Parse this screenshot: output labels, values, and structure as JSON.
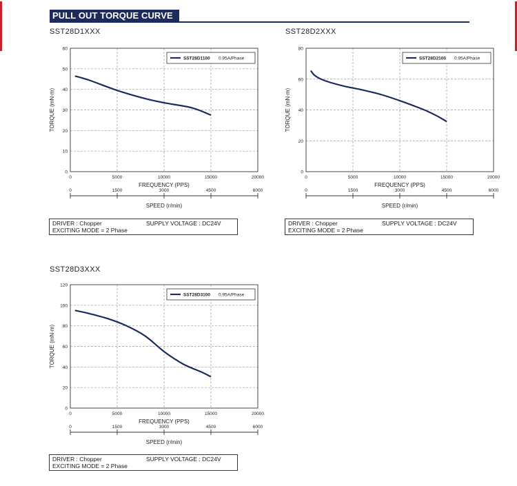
{
  "header": {
    "title": "PULL OUT TORQUE CURVE"
  },
  "colors": {
    "accent_red": "#c8202a",
    "header_bg": "#1c2b5e",
    "curve": "#1c2b5e"
  },
  "chart_data": [
    {
      "type": "line",
      "title": "SST28D1XXX",
      "xlabel": "FREQUENCY (PPS)",
      "ylabel": "TORQUE (mN·m)",
      "x2label": "SPEED (r/min)",
      "xlim": [
        0,
        20000
      ],
      "ylim": [
        0,
        60
      ],
      "xticks": [
        "0",
        "5000",
        "10000",
        "15000",
        "20000"
      ],
      "yticks": [
        "0",
        "10",
        "20",
        "30",
        "40",
        "50",
        "60"
      ],
      "x2ticks": [
        "0",
        "1500",
        "3000",
        "4500",
        "6000"
      ],
      "legend": {
        "model": "SST28D1100",
        "current": "0.95A/Phase"
      },
      "series": [
        {
          "name": "SST28D1100 0.95A/Phase",
          "x": [
            500,
            2000,
            5000,
            8000,
            10000,
            13000,
            15000
          ],
          "y": [
            46.5,
            44.5,
            39.5,
            35.5,
            33.5,
            31,
            27.5
          ]
        }
      ],
      "info": {
        "driver": "DRIVER : Chopper",
        "supply": "SUPPLY VOLTAGE : DC24V",
        "mode": "EXCITING MODE = 2 Phase"
      }
    },
    {
      "type": "line",
      "title": "SST28D2XXX",
      "xlabel": "FREQUENCY (PPS)",
      "ylabel": "TORQUE (mN·m)",
      "x2label": "SPEED (r/min)",
      "xlim": [
        0,
        20000
      ],
      "ylim": [
        0,
        80
      ],
      "xticks": [
        "0",
        "5000",
        "10000",
        "15000",
        "20000"
      ],
      "yticks": [
        "0",
        "20",
        "40",
        "60",
        "80"
      ],
      "x2ticks": [
        "0",
        "1500",
        "3000",
        "4500",
        "6000"
      ],
      "legend": {
        "model": "SST28D2100",
        "current": "0.95A/Phase"
      },
      "series": [
        {
          "name": "SST28D2100 0.95A/Phase",
          "x": [
            500,
            1000,
            2000,
            4000,
            6000,
            8000,
            10000,
            12000,
            13000,
            14000,
            15000
          ],
          "y": [
            65.5,
            62,
            59,
            55.5,
            53,
            50,
            46,
            41.5,
            39,
            36,
            32.5
          ]
        }
      ],
      "info": {
        "driver": "DRIVER : Chopper",
        "supply": "SUPPLY VOLTAGE : DC24V",
        "mode": "EXCITING MODE = 2 Phase"
      }
    },
    {
      "type": "line",
      "title": "SST28D3XXX",
      "xlabel": "FREQUENCY (PPS)",
      "ylabel": "TORQUE (mN·m)",
      "x2label": "SPEED (r/min)",
      "xlim": [
        0,
        20000
      ],
      "ylim": [
        0,
        120
      ],
      "xticks": [
        "0",
        "5000",
        "10000",
        "15000",
        "20000"
      ],
      "yticks": [
        "0",
        "20",
        "40",
        "60",
        "80",
        "100",
        "120"
      ],
      "x2ticks": [
        "0",
        "1500",
        "3000",
        "4500",
        "6000"
      ],
      "legend": {
        "model": "SST28D3100",
        "current": "0.95A/Phase"
      },
      "series": [
        {
          "name": "SST28D3100 0.95A/Phase",
          "x": [
            500,
            2000,
            4000,
            6000,
            8000,
            10000,
            12000,
            14000,
            15000
          ],
          "y": [
            95,
            92,
            87,
            80,
            70,
            55,
            43,
            35,
            30.5
          ]
        }
      ],
      "info": {
        "driver": "DRIVER : Chopper",
        "supply": "SUPPLY VOLTAGE : DC24V",
        "mode": "EXCITING MODE = 2 Phase"
      }
    }
  ]
}
